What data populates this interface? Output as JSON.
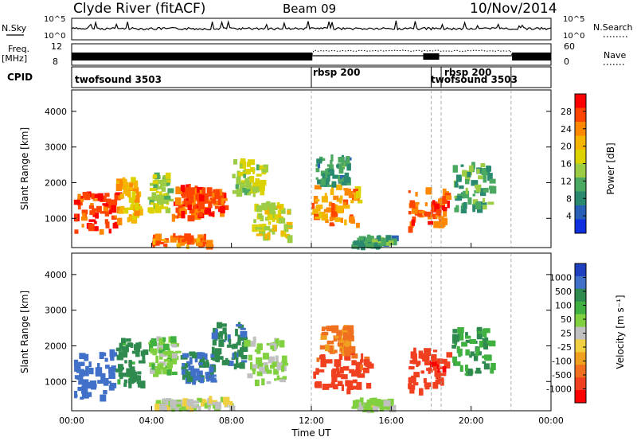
{
  "header": {
    "station": "Clyde River (fitACF)",
    "beam": "Beam 09",
    "date": "10/Nov/2014"
  },
  "top_panel": {
    "nsky_label": "N.Sky",
    "nsearch_label": "N.Search",
    "left_ticks": [
      "10^5",
      "10^0"
    ],
    "right_ticks": [
      "10^5",
      "10^0"
    ]
  },
  "freq_panel": {
    "freq_label": "Freq.",
    "freq_unit": "[MHz]",
    "left_ticks": [
      "12",
      "8"
    ],
    "right_ticks": [
      "60",
      "0"
    ],
    "nave_label": "Nave"
  },
  "cpid_panel": {
    "label": "CPID",
    "modes": [
      "twofsound 3503",
      "rbsp 200",
      "twofsound 3503",
      "rbsp 200"
    ]
  },
  "power_panel": {
    "ylabel": "Slant Range [km]",
    "yticks": [
      "4000",
      "3000",
      "2000",
      "1000"
    ],
    "cbar_label": "Power [dB]",
    "cbar_ticks": [
      "28",
      "24",
      "20",
      "16",
      "12",
      "8",
      "4"
    ],
    "cbar_colors": [
      "#ff0000",
      "#ff4400",
      "#ff8800",
      "#f5b400",
      "#dcd200",
      "#9ccc44",
      "#4aa860",
      "#2a8a70",
      "#2860b8",
      "#1030e0"
    ]
  },
  "velocity_panel": {
    "ylabel": "Slant Range [km]",
    "yticks": [
      "4000",
      "3000",
      "2000",
      "1000"
    ],
    "cbar_label": "Velocity [m s⁻¹]",
    "cbar_ticks": [
      "1000",
      "500",
      "100",
      "50",
      "25",
      "-25",
      "-100",
      "-500",
      "-1000"
    ],
    "cbar_colors": [
      "#2040c0",
      "#4070c8",
      "#2e8a4e",
      "#40b040",
      "#80d040",
      "#c0c0c0",
      "#f0d040",
      "#f0a020",
      "#f07020",
      "#f04020",
      "#ff0000"
    ]
  },
  "xaxis": {
    "ticks": [
      "00:00",
      "04:00",
      "08:00",
      "12:00",
      "16:00",
      "20:00",
      "00:00"
    ],
    "label": "Time UT"
  },
  "chart_data": {
    "type": "heatmap",
    "x_range_hours": [
      0,
      24
    ],
    "y_range_km": [
      180,
      4600
    ],
    "mode_change_times_ut": [
      "12:00",
      "18:00",
      "18:30",
      "22:00"
    ],
    "power_patches": [
      {
        "t0": 0.1,
        "t1": 2.2,
        "r0": 600,
        "r1": 1700,
        "db": 28
      },
      {
        "t0": 2.2,
        "t1": 3.3,
        "r0": 900,
        "r1": 2100,
        "db": 20
      },
      {
        "t0": 3.8,
        "t1": 4.8,
        "r0": 1200,
        "r1": 2200,
        "db": 14
      },
      {
        "t0": 5.0,
        "t1": 6.2,
        "r0": 1000,
        "r1": 1900,
        "db": 26
      },
      {
        "t0": 6.2,
        "t1": 7.6,
        "r0": 1100,
        "r1": 1800,
        "db": 27
      },
      {
        "t0": 4.0,
        "t1": 6.8,
        "r0": 200,
        "r1": 500,
        "db": 24
      },
      {
        "t0": 8.0,
        "t1": 9.6,
        "r0": 1700,
        "r1": 2600,
        "db": 14
      },
      {
        "t0": 9.0,
        "t1": 10.8,
        "r0": 400,
        "r1": 1400,
        "db": 16
      },
      {
        "t0": 12.0,
        "t1": 14.4,
        "r0": 800,
        "r1": 1900,
        "db": 22
      },
      {
        "t0": 12.2,
        "t1": 13.8,
        "r0": 1900,
        "r1": 2700,
        "db": 8
      },
      {
        "t0": 14.0,
        "t1": 16.2,
        "r0": 200,
        "r1": 450,
        "db": 8
      },
      {
        "t0": 16.8,
        "t1": 18.8,
        "r0": 650,
        "r1": 1800,
        "db": 26
      },
      {
        "t0": 19.0,
        "t1": 21.0,
        "r0": 1200,
        "r1": 2500,
        "db": 10
      }
    ],
    "velocity_patches": [
      {
        "t0": 0.1,
        "t1": 2.2,
        "r0": 500,
        "r1": 1800,
        "v": 700
      },
      {
        "t0": 2.2,
        "t1": 3.6,
        "r0": 900,
        "r1": 2200,
        "v": 300
      },
      {
        "t0": 3.8,
        "t1": 5.2,
        "r0": 1200,
        "r1": 2200,
        "v": 80
      },
      {
        "t0": 5.4,
        "t1": 7.0,
        "r0": 1000,
        "r1": 1800,
        "v": 600
      },
      {
        "t0": 7.0,
        "t1": 8.6,
        "r0": 1400,
        "r1": 2600,
        "v": 400
      },
      {
        "t0": 8.6,
        "t1": 10.6,
        "r0": 900,
        "r1": 2200,
        "v": 60
      },
      {
        "t0": 12.0,
        "t1": 14.8,
        "r0": 700,
        "r1": 1800,
        "v": -350
      },
      {
        "t0": 12.4,
        "t1": 14.0,
        "r0": 1800,
        "r1": 2500,
        "v": -120
      },
      {
        "t0": 16.8,
        "t1": 18.8,
        "r0": 650,
        "r1": 1900,
        "v": -400
      },
      {
        "t0": 19.0,
        "t1": 21.0,
        "r0": 1200,
        "r1": 2500,
        "v": 200
      },
      {
        "t0": 4.0,
        "t1": 8.0,
        "r0": 200,
        "r1": 500,
        "v": 40
      },
      {
        "t0": 14.0,
        "t1": 16.0,
        "r0": 200,
        "r1": 450,
        "v": 60
      }
    ]
  }
}
